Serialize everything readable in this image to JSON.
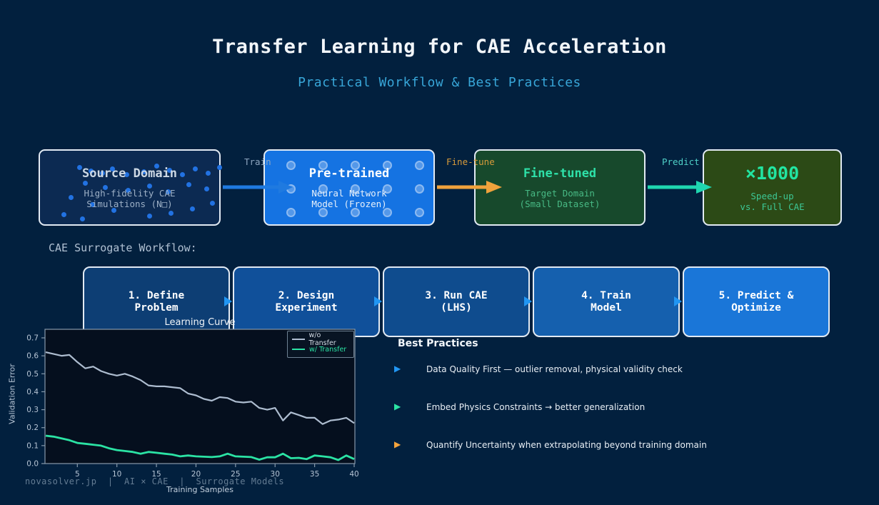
{
  "header": {
    "title": "Transfer Learning for CAE Acceleration",
    "subtitle": "Practical Workflow & Best Practices"
  },
  "flow": {
    "source": {
      "title": "Source Domain",
      "line1": "High-fidelity CAE",
      "line2": "Simulations (N□)"
    },
    "pretrained": {
      "title": "Pre-trained",
      "line1": "Neural Network",
      "line2": "Model (Frozen)"
    },
    "finetuned": {
      "title": "Fine-tuned",
      "line1": "Target Domain",
      "line2": "(Small Dataset)"
    },
    "speedup": {
      "title": "×1000",
      "line1": "Speed-up",
      "line2": "vs. Full CAE"
    },
    "arrow_labels": {
      "train": "Train",
      "finetune": "Fine-tune",
      "predict": "Predict"
    },
    "arrow_colors": {
      "train": "#1f7ae0",
      "finetune": "#f0a23c",
      "predict": "#1fd6b0"
    }
  },
  "workflow": {
    "label": "CAE Surrogate Workflow:",
    "steps": [
      {
        "line1": "1. Define",
        "line2": "Problem",
        "color": "#0d3e74"
      },
      {
        "line1": "2. Design",
        "line2": "Experiment",
        "color": "#10509a"
      },
      {
        "line1": "3. Run CAE",
        "line2": "(LHS)",
        "color": "#0f4c8e"
      },
      {
        "line1": "4. Train",
        "line2": "Model",
        "color": "#1560ae"
      },
      {
        "line1": "5. Predict &",
        "line2": "Optimize",
        "color": "#1a76d8"
      }
    ]
  },
  "chart_data": {
    "type": "line",
    "title": "Learning Curve",
    "xlabel": "Training Samples",
    "ylabel": "Validation Error",
    "xlim": [
      1,
      40
    ],
    "ylim": [
      0,
      0.75
    ],
    "x_ticks": [
      5,
      10,
      15,
      20,
      25,
      30,
      35,
      40
    ],
    "y_ticks": [
      0.0,
      0.1,
      0.2,
      0.3,
      0.4,
      0.5,
      0.6,
      0.7
    ],
    "legend_position": "upper right",
    "grid": false,
    "x": [
      1,
      2,
      3,
      4,
      5,
      6,
      7,
      8,
      9,
      10,
      11,
      12,
      13,
      14,
      15,
      16,
      17,
      18,
      19,
      20,
      21,
      22,
      23,
      24,
      25,
      26,
      27,
      28,
      29,
      30,
      31,
      32,
      33,
      34,
      35,
      36,
      37,
      38,
      39,
      40
    ],
    "series": [
      {
        "name": "w/o Transfer",
        "color": "#aebdd0",
        "values": [
          0.62,
          0.61,
          0.6,
          0.605,
          0.565,
          0.53,
          0.54,
          0.515,
          0.5,
          0.49,
          0.5,
          0.485,
          0.465,
          0.435,
          0.43,
          0.43,
          0.425,
          0.42,
          0.39,
          0.38,
          0.36,
          0.35,
          0.37,
          0.365,
          0.345,
          0.34,
          0.345,
          0.31,
          0.3,
          0.31,
          0.24,
          0.285,
          0.27,
          0.255,
          0.255,
          0.22,
          0.24,
          0.245,
          0.255,
          0.225
        ]
      },
      {
        "name": "w/ Transfer",
        "color": "#2be3a4",
        "values": [
          0.155,
          0.15,
          0.14,
          0.13,
          0.115,
          0.11,
          0.105,
          0.1,
          0.085,
          0.075,
          0.07,
          0.065,
          0.055,
          0.065,
          0.06,
          0.055,
          0.05,
          0.04,
          0.045,
          0.04,
          0.038,
          0.036,
          0.04,
          0.055,
          0.04,
          0.038,
          0.036,
          0.022,
          0.035,
          0.035,
          0.055,
          0.03,
          0.032,
          0.025,
          0.045,
          0.04,
          0.035,
          0.02,
          0.045,
          0.025
        ]
      }
    ]
  },
  "best_practices": {
    "heading": "Best Practices",
    "items": [
      {
        "text": "Data Quality First — outlier removal, physical validity check",
        "bullet_color": "#2196f3"
      },
      {
        "text": "Embed Physics Constraints → better generalization",
        "bullet_color": "#2be3a4"
      },
      {
        "text": "Quantify Uncertainty when extrapolating beyond training domain",
        "bullet_color": "#f5a43c"
      }
    ]
  },
  "footer": {
    "text": "novasolver.jp  |  AI × CAE  |  Surrogate Models"
  }
}
